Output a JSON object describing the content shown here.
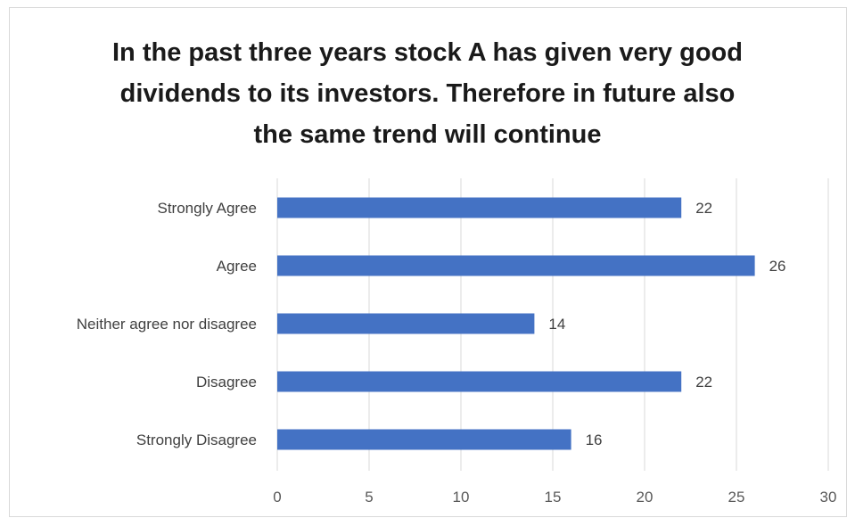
{
  "chart_data": {
    "type": "bar",
    "orientation": "horizontal",
    "title": "In the past three years stock A has given very good dividends to its investors. Therefore in future also the same trend will continue",
    "categories": [
      "Strongly Agree",
      "Agree",
      "Neither agree nor disagree",
      "Disagree",
      "Strongly Disagree"
    ],
    "values": [
      22,
      26,
      14,
      22,
      16
    ],
    "xlim": [
      0,
      30
    ],
    "x_ticks": [
      0,
      5,
      10,
      15,
      20,
      25,
      30
    ],
    "xlabel": "",
    "ylabel": "",
    "grid": "vertical",
    "legend": "none",
    "data_labels": true,
    "bar_color": "#4472c4",
    "grid_color": "#d9d9d9"
  }
}
